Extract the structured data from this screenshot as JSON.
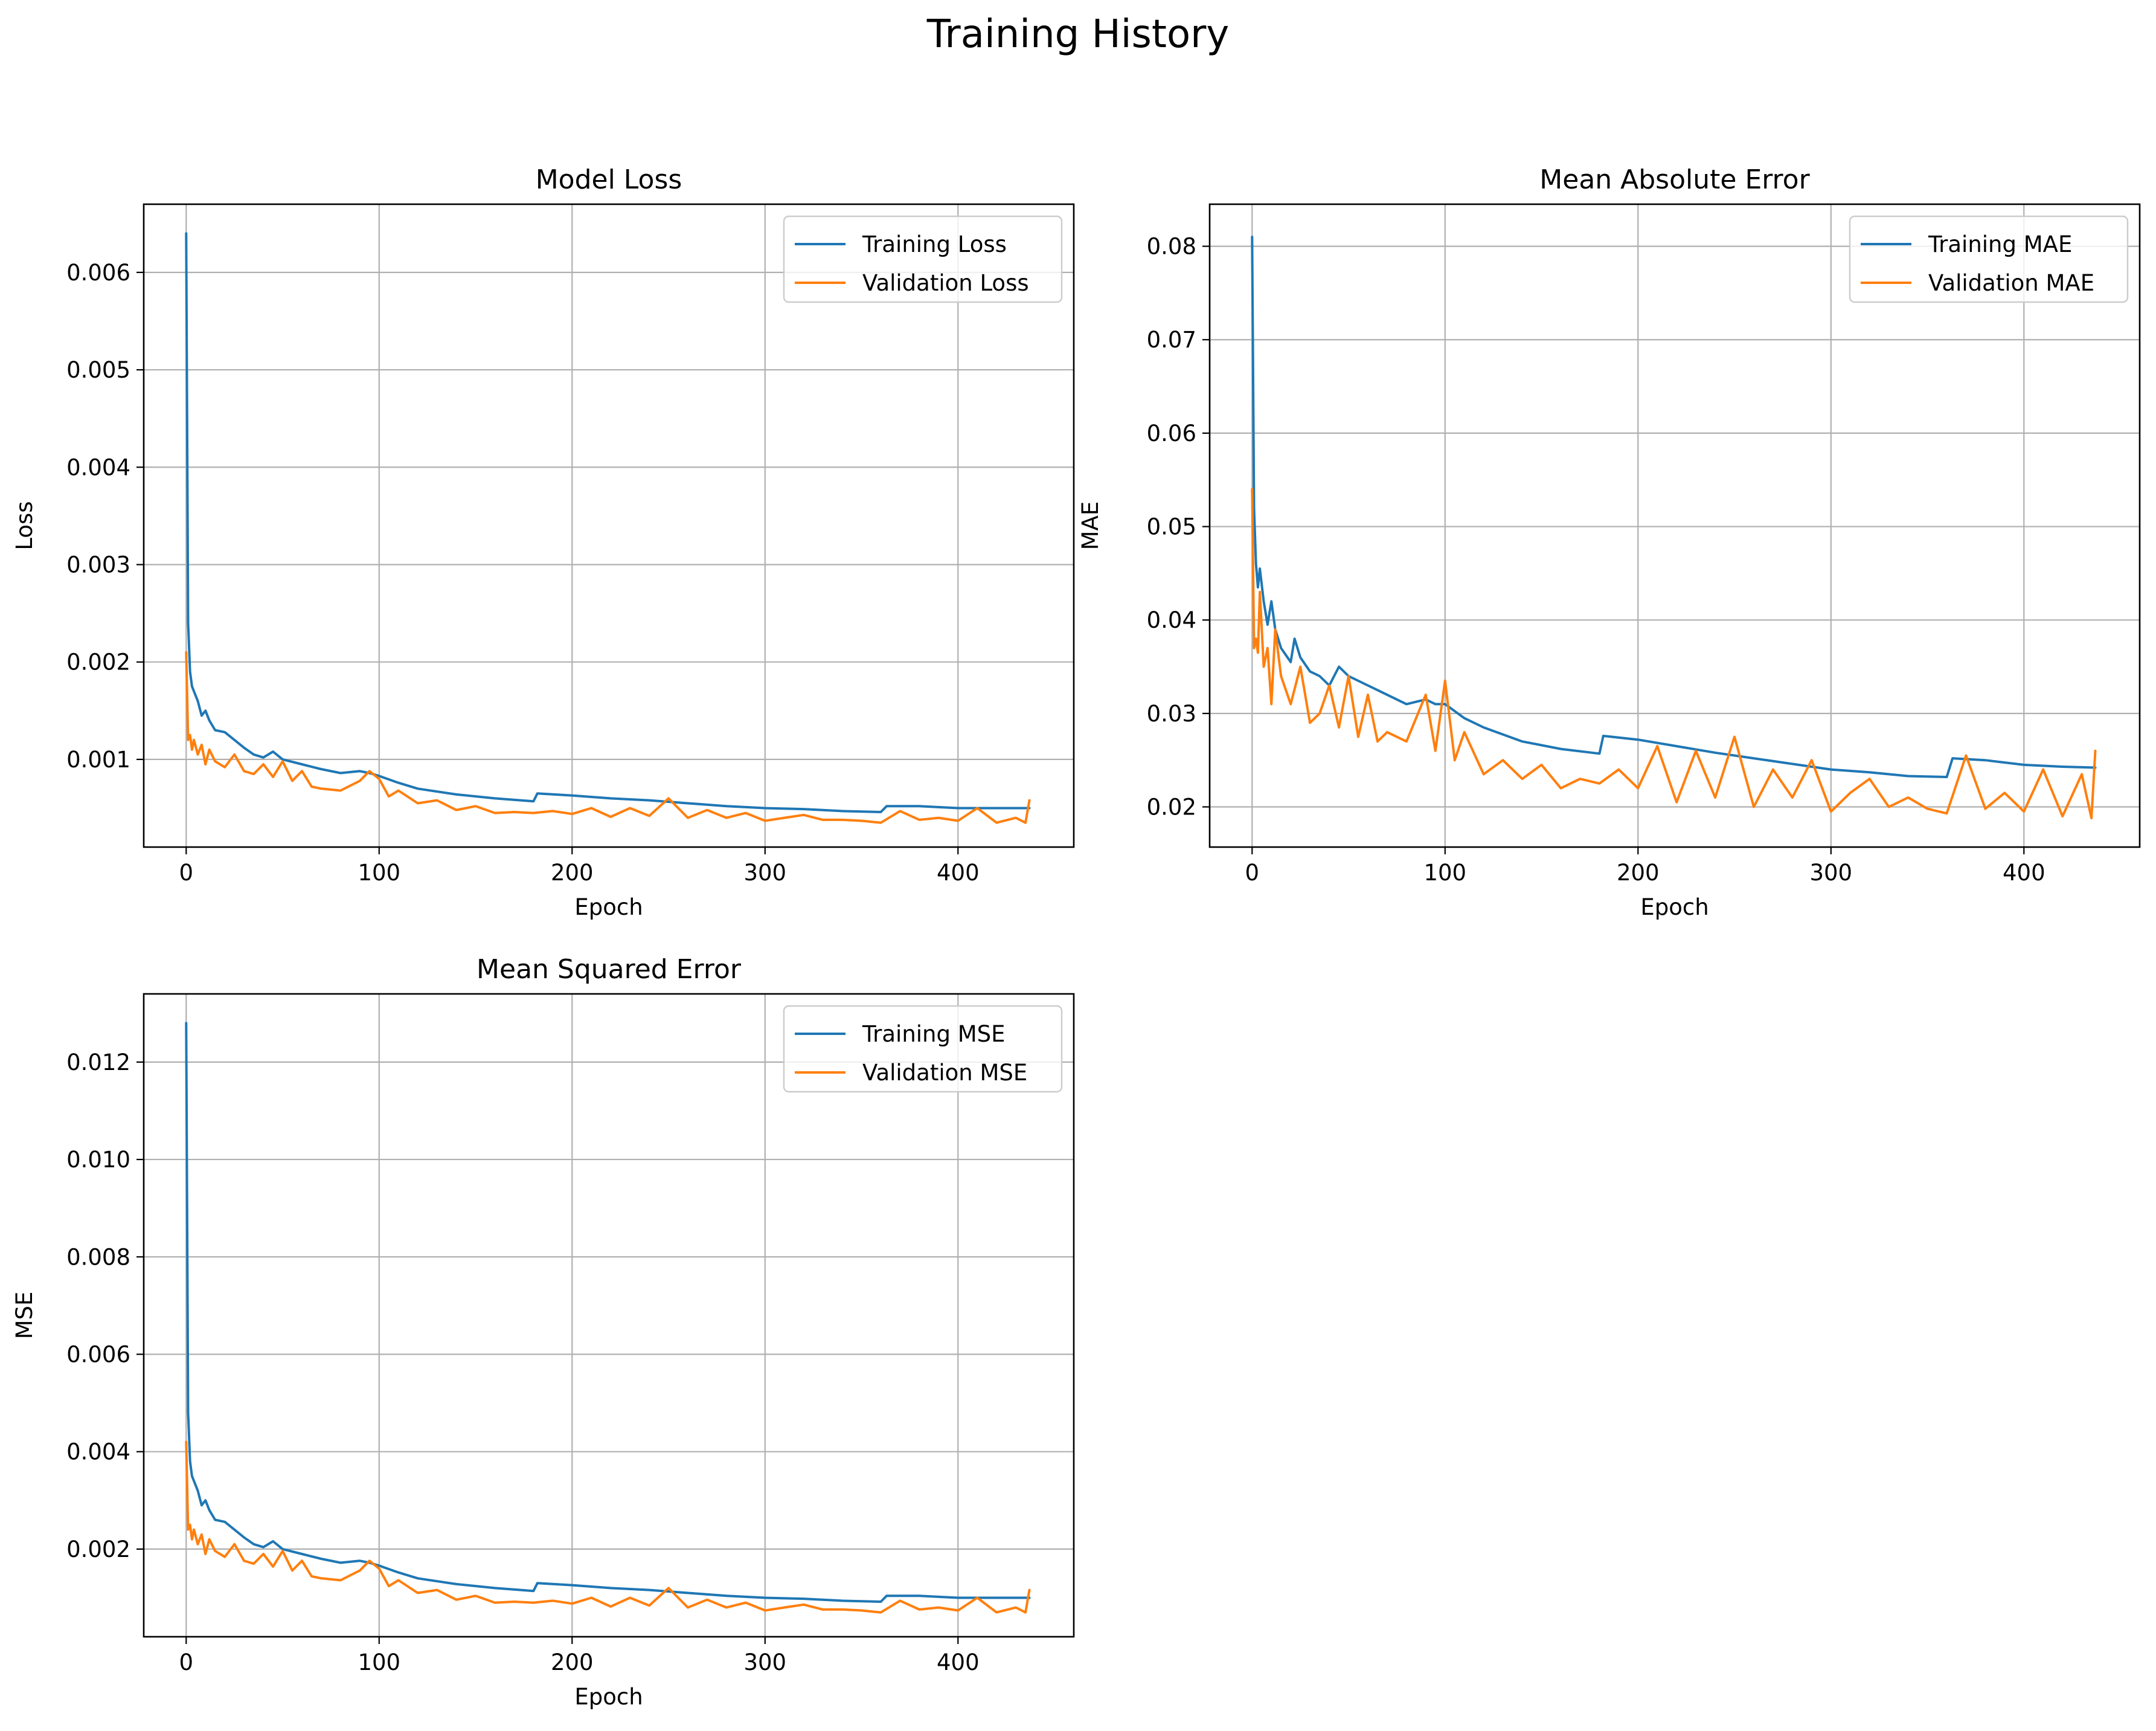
{
  "figure": {
    "title": "Training History"
  },
  "colors": {
    "training": "#1f77b4",
    "validation": "#ff7f0e"
  },
  "chart_data": [
    {
      "type": "line",
      "title": "Model Loss",
      "xlabel": "Epoch",
      "ylabel": "Loss",
      "xlim": [
        -22,
        460
      ],
      "ylim": [
        0.0001,
        0.0067
      ],
      "xticks": [
        0,
        100,
        200,
        300,
        400
      ],
      "xtick_labels": [
        "0",
        "100",
        "200",
        "300",
        "400"
      ],
      "yticks": [
        0.001,
        0.002,
        0.003,
        0.004,
        0.005,
        0.006
      ],
      "ytick_labels": [
        "0.001",
        "0.002",
        "0.003",
        "0.004",
        "0.005",
        "0.006"
      ],
      "grid": true,
      "legend": "top-right",
      "series": [
        {
          "name": "Training Loss",
          "color": "#1f77b4",
          "x": [
            0,
            1,
            2,
            3,
            4,
            6,
            8,
            10,
            12,
            15,
            20,
            25,
            30,
            35,
            40,
            45,
            50,
            60,
            70,
            80,
            90,
            95,
            100,
            110,
            120,
            140,
            160,
            180,
            182,
            200,
            220,
            240,
            260,
            280,
            300,
            320,
            340,
            360,
            363,
            380,
            400,
            420,
            437
          ],
          "values": [
            0.0064,
            0.0024,
            0.0019,
            0.00175,
            0.0017,
            0.0016,
            0.00145,
            0.0015,
            0.0014,
            0.0013,
            0.00128,
            0.0012,
            0.00112,
            0.00105,
            0.00102,
            0.00108,
            0.001,
            0.00095,
            0.0009,
            0.00086,
            0.00088,
            0.00086,
            0.00083,
            0.00076,
            0.0007,
            0.00064,
            0.0006,
            0.00057,
            0.00065,
            0.00063,
            0.0006,
            0.00058,
            0.00055,
            0.00052,
            0.0005,
            0.00049,
            0.00047,
            0.00046,
            0.00052,
            0.00052,
            0.0005,
            0.0005,
            0.0005
          ]
        },
        {
          "name": "Validation Loss",
          "color": "#ff7f0e",
          "x": [
            0,
            1,
            2,
            3,
            4,
            6,
            8,
            10,
            12,
            15,
            20,
            25,
            30,
            35,
            40,
            45,
            50,
            55,
            60,
            65,
            70,
            80,
            90,
            95,
            100,
            105,
            110,
            120,
            130,
            140,
            150,
            160,
            170,
            180,
            190,
            200,
            210,
            220,
            230,
            240,
            250,
            260,
            270,
            280,
            290,
            300,
            310,
            320,
            330,
            340,
            350,
            360,
            370,
            380,
            390,
            400,
            410,
            420,
            430,
            435,
            437
          ],
          "values": [
            0.0021,
            0.0012,
            0.00125,
            0.0011,
            0.0012,
            0.00105,
            0.00115,
            0.00095,
            0.0011,
            0.00098,
            0.00092,
            0.00105,
            0.00088,
            0.00085,
            0.00095,
            0.00082,
            0.00098,
            0.00078,
            0.00088,
            0.00072,
            0.0007,
            0.00068,
            0.00078,
            0.00088,
            0.0008,
            0.00062,
            0.00068,
            0.00055,
            0.00058,
            0.00048,
            0.00052,
            0.00045,
            0.00046,
            0.00045,
            0.00047,
            0.00044,
            0.0005,
            0.00041,
            0.0005,
            0.00042,
            0.0006,
            0.0004,
            0.00048,
            0.0004,
            0.00045,
            0.00037,
            0.0004,
            0.00043,
            0.00038,
            0.00038,
            0.00037,
            0.00035,
            0.00047,
            0.00038,
            0.0004,
            0.00037,
            0.0005,
            0.00035,
            0.0004,
            0.00035,
            0.00058
          ]
        }
      ]
    },
    {
      "type": "line",
      "title": "Mean Absolute Error",
      "xlabel": "Epoch",
      "ylabel": "MAE",
      "xlim": [
        -22,
        460
      ],
      "ylim": [
        0.0157,
        0.0845
      ],
      "xticks": [
        0,
        100,
        200,
        300,
        400
      ],
      "xtick_labels": [
        "0",
        "100",
        "200",
        "300",
        "400"
      ],
      "yticks": [
        0.02,
        0.03,
        0.04,
        0.05,
        0.06,
        0.07,
        0.08
      ],
      "ytick_labels": [
        "0.02",
        "0.03",
        "0.04",
        "0.05",
        "0.06",
        "0.07",
        "0.08"
      ],
      "grid": true,
      "legend": "top-right",
      "series": [
        {
          "name": "Training MAE",
          "color": "#1f77b4",
          "x": [
            0,
            1,
            2,
            3,
            4,
            6,
            8,
            10,
            12,
            15,
            20,
            22,
            25,
            30,
            35,
            40,
            45,
            50,
            60,
            70,
            80,
            90,
            95,
            100,
            110,
            120,
            140,
            160,
            180,
            182,
            200,
            220,
            240,
            260,
            280,
            300,
            320,
            340,
            360,
            363,
            380,
            400,
            420,
            437
          ],
          "values": [
            0.081,
            0.052,
            0.046,
            0.0435,
            0.0455,
            0.042,
            0.0395,
            0.042,
            0.039,
            0.037,
            0.0355,
            0.038,
            0.036,
            0.0345,
            0.034,
            0.033,
            0.035,
            0.034,
            0.033,
            0.032,
            0.031,
            0.0315,
            0.031,
            0.031,
            0.0295,
            0.0285,
            0.027,
            0.0262,
            0.0257,
            0.0276,
            0.0272,
            0.0265,
            0.0258,
            0.0252,
            0.0246,
            0.024,
            0.0237,
            0.0233,
            0.0232,
            0.0252,
            0.025,
            0.0245,
            0.0243,
            0.0242
          ]
        },
        {
          "name": "Validation MAE",
          "color": "#ff7f0e",
          "x": [
            0,
            1,
            2,
            3,
            4,
            6,
            8,
            10,
            12,
            15,
            20,
            25,
            30,
            35,
            40,
            45,
            50,
            55,
            60,
            65,
            70,
            80,
            90,
            95,
            100,
            105,
            110,
            120,
            130,
            140,
            150,
            160,
            170,
            180,
            190,
            200,
            210,
            220,
            230,
            240,
            250,
            260,
            270,
            280,
            290,
            300,
            310,
            320,
            330,
            340,
            350,
            360,
            370,
            380,
            390,
            400,
            410,
            420,
            430,
            435,
            437
          ],
          "values": [
            0.054,
            0.037,
            0.038,
            0.0365,
            0.043,
            0.035,
            0.037,
            0.031,
            0.039,
            0.034,
            0.031,
            0.035,
            0.029,
            0.03,
            0.033,
            0.0285,
            0.034,
            0.0275,
            0.032,
            0.027,
            0.028,
            0.027,
            0.032,
            0.026,
            0.0335,
            0.025,
            0.028,
            0.0235,
            0.025,
            0.023,
            0.0245,
            0.022,
            0.023,
            0.0225,
            0.024,
            0.022,
            0.0265,
            0.0205,
            0.026,
            0.021,
            0.0275,
            0.02,
            0.024,
            0.021,
            0.025,
            0.0195,
            0.0215,
            0.023,
            0.02,
            0.021,
            0.0198,
            0.0193,
            0.0255,
            0.0198,
            0.0215,
            0.0195,
            0.024,
            0.019,
            0.0235,
            0.0188,
            0.026
          ]
        }
      ]
    },
    {
      "type": "line",
      "title": "Mean Squared Error",
      "xlabel": "Epoch",
      "ylabel": "MSE",
      "xlim": [
        -22,
        460
      ],
      "ylim": [
        0.0002,
        0.0134
      ],
      "xticks": [
        0,
        100,
        200,
        300,
        400
      ],
      "xtick_labels": [
        "0",
        "100",
        "200",
        "300",
        "400"
      ],
      "yticks": [
        0.002,
        0.004,
        0.006,
        0.008,
        0.01,
        0.012
      ],
      "ytick_labels": [
        "0.002",
        "0.004",
        "0.006",
        "0.008",
        "0.010",
        "0.012"
      ],
      "grid": true,
      "legend": "top-right",
      "series": [
        {
          "name": "Training MSE",
          "color": "#1f77b4",
          "x": [
            0,
            1,
            2,
            3,
            4,
            6,
            8,
            10,
            12,
            15,
            20,
            25,
            30,
            35,
            40,
            45,
            50,
            60,
            70,
            80,
            90,
            95,
            100,
            110,
            120,
            140,
            160,
            180,
            182,
            200,
            220,
            240,
            260,
            280,
            300,
            320,
            340,
            360,
            363,
            380,
            400,
            420,
            437
          ],
          "values": [
            0.0128,
            0.0048,
            0.0038,
            0.0035,
            0.0034,
            0.0032,
            0.0029,
            0.003,
            0.0028,
            0.0026,
            0.00256,
            0.0024,
            0.00224,
            0.0021,
            0.00204,
            0.00216,
            0.002,
            0.0019,
            0.0018,
            0.00172,
            0.00176,
            0.00172,
            0.00166,
            0.00152,
            0.0014,
            0.00128,
            0.0012,
            0.00114,
            0.0013,
            0.00126,
            0.0012,
            0.00116,
            0.0011,
            0.00104,
            0.001,
            0.00098,
            0.00094,
            0.00092,
            0.00104,
            0.00104,
            0.001,
            0.001,
            0.001
          ]
        },
        {
          "name": "Validation MSE",
          "color": "#ff7f0e",
          "x": [
            0,
            1,
            2,
            3,
            4,
            6,
            8,
            10,
            12,
            15,
            20,
            25,
            30,
            35,
            40,
            45,
            50,
            55,
            60,
            65,
            70,
            80,
            90,
            95,
            100,
            105,
            110,
            120,
            130,
            140,
            150,
            160,
            170,
            180,
            190,
            200,
            210,
            220,
            230,
            240,
            250,
            260,
            270,
            280,
            290,
            300,
            310,
            320,
            330,
            340,
            350,
            360,
            370,
            380,
            390,
            400,
            410,
            420,
            430,
            435,
            437
          ],
          "values": [
            0.0042,
            0.0024,
            0.0025,
            0.0022,
            0.0024,
            0.0021,
            0.0023,
            0.0019,
            0.0022,
            0.00196,
            0.00184,
            0.0021,
            0.00176,
            0.0017,
            0.0019,
            0.00164,
            0.00196,
            0.00156,
            0.00176,
            0.00144,
            0.0014,
            0.00136,
            0.00156,
            0.00176,
            0.0016,
            0.00124,
            0.00136,
            0.0011,
            0.00116,
            0.00096,
            0.00104,
            0.0009,
            0.00092,
            0.0009,
            0.00094,
            0.00088,
            0.001,
            0.00082,
            0.001,
            0.00084,
            0.0012,
            0.0008,
            0.00096,
            0.0008,
            0.0009,
            0.00074,
            0.0008,
            0.00086,
            0.00076,
            0.00076,
            0.00074,
            0.0007,
            0.00094,
            0.00076,
            0.0008,
            0.00074,
            0.001,
            0.0007,
            0.0008,
            0.0007,
            0.00116
          ]
        }
      ]
    }
  ]
}
